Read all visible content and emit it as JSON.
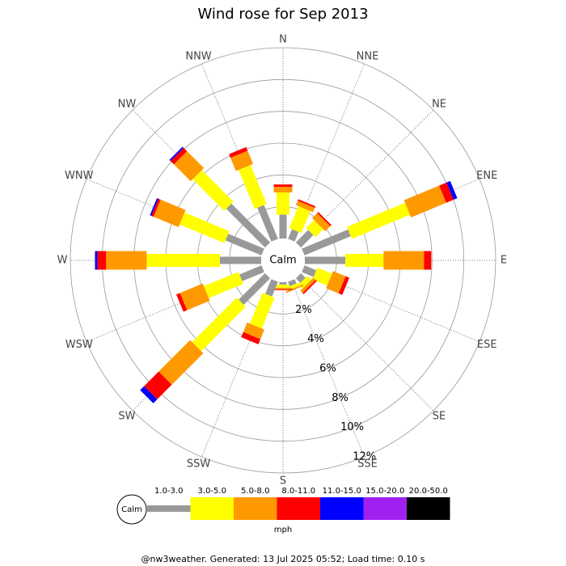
{
  "chart_data": {
    "type": "windrose",
    "title": "Wind rose for Sep 2013",
    "calm_label": "Calm",
    "directions": [
      "N",
      "NNE",
      "NE",
      "ENE",
      "E",
      "ESE",
      "SE",
      "SSE",
      "S",
      "SSW",
      "SW",
      "WSW",
      "W",
      "WNW",
      "NW",
      "NNW"
    ],
    "rlim": [
      0,
      12
    ],
    "rticks": [
      {
        "value": 2,
        "label": "2%"
      },
      {
        "value": 4,
        "label": "4%"
      },
      {
        "value": 6,
        "label": "6%"
      },
      {
        "value": 8,
        "label": "8%"
      },
      {
        "value": 10,
        "label": "10%"
      },
      {
        "value": 12,
        "label": "12%"
      }
    ],
    "series": [
      {
        "name": "1.0-3.0",
        "color": "#999999",
        "values": [
          1.5,
          0.65,
          1.1,
          3.15,
          2.55,
          0.8,
          0.4,
          0.3,
          0.15,
          1.0,
          2.35,
          1.5,
          2.6,
          2.45,
          3.45,
          2.3
        ]
      },
      {
        "name": "3.0-5.0",
        "color": "#ffff00",
        "values": [
          1.4,
          1.5,
          0.7,
          3.95,
          2.4,
          1.0,
          0.35,
          0.2,
          0.2,
          2.1,
          3.95,
          2.35,
          4.6,
          3.05,
          2.8,
          2.65
        ]
      },
      {
        "name": "5.0-8.0",
        "color": "#ff9900",
        "values": [
          0.35,
          0.3,
          0.45,
          2.4,
          2.55,
          0.85,
          0.2,
          0.1,
          0.1,
          0.65,
          2.8,
          1.55,
          2.55,
          1.7,
          1.5,
          0.9
        ]
      },
      {
        "name": "8.0-11.0",
        "color": "#ff0000",
        "values": [
          0.15,
          0.1,
          0.1,
          0.5,
          0.45,
          0.25,
          0.1,
          0,
          0.05,
          0.35,
          1.3,
          0.25,
          0.55,
          0.15,
          0.3,
          0.25
        ]
      },
      {
        "name": "11.0-15.0",
        "color": "#0000ff",
        "values": [
          0,
          0,
          0,
          0.25,
          0,
          0,
          0,
          0,
          0,
          0,
          0.35,
          0,
          0.15,
          0.1,
          0.1,
          0
        ]
      },
      {
        "name": "15.0-20.0",
        "color": "#a020f0",
        "values": [
          0,
          0,
          0,
          0,
          0,
          0,
          0,
          0,
          0,
          0,
          0,
          0,
          0,
          0,
          0,
          0
        ]
      },
      {
        "name": "20.0-50.0",
        "color": "#000000",
        "values": [
          0,
          0,
          0,
          0,
          0,
          0,
          0,
          0,
          0,
          0,
          0,
          0,
          0,
          0,
          0,
          0
        ]
      }
    ],
    "legend_unit": "mph",
    "footer": "@nw3weather. Generated: 13 Jul 2025 05:52; Load time: 0.10 s"
  }
}
